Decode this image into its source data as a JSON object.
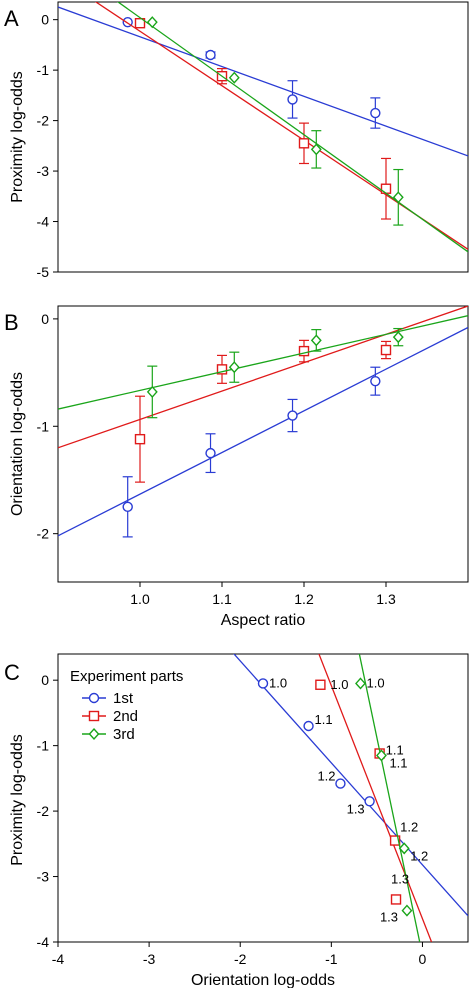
{
  "colors": {
    "s1": "#2a3cd4",
    "s2": "#e01a1a",
    "s3": "#1aa51a"
  },
  "chart_data": [
    {
      "panel": "A",
      "type": "scatter",
      "xlim": [
        0.9,
        1.4
      ],
      "ylim": [
        -5,
        0.35
      ],
      "xticks": [],
      "yticks": [
        "0",
        "-1",
        "-2",
        "-3",
        "-4",
        "-5"
      ],
      "ylabel": "Proximity log-odds",
      "xlabel": "",
      "series": [
        {
          "marker": "circle",
          "color": "#2a3cd4",
          "points": [
            [
              0.985,
              -0.05,
              0,
              0
            ],
            [
              1.086,
              -0.7,
              0.06,
              0.06
            ],
            [
              1.186,
              -1.58,
              0.37,
              0.37
            ],
            [
              1.287,
              -1.85,
              0.3,
              0.3
            ]
          ],
          "line": [
            [
              0.9,
              0.25
            ],
            [
              1.4,
              -2.7
            ]
          ]
        },
        {
          "marker": "square",
          "color": "#e01a1a",
          "points": [
            [
              1.0,
              -0.07,
              0,
              0
            ],
            [
              1.1,
              -1.12,
              0.15,
              0.15
            ],
            [
              1.2,
              -2.45,
              0.4,
              0.4
            ],
            [
              1.3,
              -3.35,
              0.6,
              0.6
            ]
          ],
          "line": [
            [
              0.9,
              0.85
            ],
            [
              1.4,
              -4.55
            ]
          ]
        },
        {
          "marker": "diamond",
          "color": "#1aa51a",
          "points": [
            [
              1.015,
              -0.05,
              0,
              0
            ],
            [
              1.115,
              -1.15,
              0,
              0
            ],
            [
              1.215,
              -2.57,
              0.37,
              0.37
            ],
            [
              1.315,
              -3.52,
              0.55,
              0.55
            ]
          ],
          "line": [
            [
              0.9,
              1.2
            ],
            [
              1.4,
              -4.6
            ]
          ]
        }
      ]
    },
    {
      "panel": "B",
      "type": "scatter",
      "xlim": [
        0.9,
        1.4
      ],
      "ylim": [
        -2.45,
        0.12
      ],
      "xticks": [
        "1.0",
        "1.1",
        "1.2",
        "1.3"
      ],
      "yticks": [
        "0",
        "-1",
        "-2"
      ],
      "ylabel": "Orientation log-odds",
      "xlabel": "Aspect ratio",
      "series": [
        {
          "marker": "circle",
          "color": "#2a3cd4",
          "points": [
            [
              0.985,
              -1.75,
              0.28,
              0.28
            ],
            [
              1.086,
              -1.25,
              0.18,
              0.18
            ],
            [
              1.186,
              -0.9,
              0.15,
              0.15
            ],
            [
              1.287,
              -0.58,
              0.13,
              0.13
            ]
          ],
          "line": [
            [
              0.9,
              -2.02
            ],
            [
              1.4,
              -0.08
            ]
          ]
        },
        {
          "marker": "square",
          "color": "#e01a1a",
          "points": [
            [
              1.0,
              -1.12,
              0.4,
              0.4
            ],
            [
              1.1,
              -0.47,
              0.13,
              0.13
            ],
            [
              1.2,
              -0.3,
              0.1,
              0.1
            ],
            [
              1.3,
              -0.29,
              0.08,
              0.08
            ]
          ],
          "line": [
            [
              0.9,
              -1.2
            ],
            [
              1.4,
              0.12
            ]
          ]
        },
        {
          "marker": "diamond",
          "color": "#1aa51a",
          "points": [
            [
              1.015,
              -0.68,
              0.24,
              0.24
            ],
            [
              1.115,
              -0.45,
              0.14,
              0.14
            ],
            [
              1.215,
              -0.2,
              0.1,
              0.1
            ],
            [
              1.315,
              -0.17,
              0.08,
              0.08
            ]
          ],
          "line": [
            [
              0.9,
              -0.84
            ],
            [
              1.4,
              0.03
            ]
          ]
        }
      ]
    },
    {
      "panel": "C",
      "type": "scatter",
      "xlim": [
        -4,
        0.5
      ],
      "ylim": [
        -4,
        0.4
      ],
      "xticks": [
        "-4",
        "-3",
        "-2",
        "-1",
        "0"
      ],
      "yticks": [
        "0",
        "-1",
        "-2",
        "-3",
        "-4"
      ],
      "ylabel": "Proximity log-odds",
      "xlabel": "Orientation log-odds",
      "legend": {
        "title": "Experiment parts",
        "entries": [
          "1st",
          "2nd",
          "3rd"
        ],
        "placement": "top-left"
      },
      "series": [
        {
          "name": "1st",
          "marker": "circle",
          "color": "#2a3cd4",
          "points": [
            [
              -1.75,
              -0.05
            ],
            [
              -1.25,
              -0.7
            ],
            [
              -0.9,
              -1.58
            ],
            [
              -0.58,
              -1.85
            ]
          ],
          "labels": [
            "1.0",
            "1.1",
            "1.2",
            "1.3"
          ],
          "line": [
            [
              -2.1,
              0.45
            ],
            [
              0.5,
              -3.6
            ]
          ]
        },
        {
          "name": "2nd",
          "marker": "square",
          "color": "#e01a1a",
          "points": [
            [
              -1.12,
              -0.07
            ],
            [
              -0.47,
              -1.12
            ],
            [
              -0.3,
              -2.45
            ],
            [
              -0.29,
              -3.35
            ]
          ],
          "labels": [
            "1.0",
            "1.1",
            "1.2",
            "1.3"
          ],
          "line": [
            [
              -1.15,
              0.45
            ],
            [
              0.1,
              -4.0
            ]
          ]
        },
        {
          "name": "3rd",
          "marker": "diamond",
          "color": "#1aa51a",
          "points": [
            [
              -0.68,
              -0.05
            ],
            [
              -0.45,
              -1.15
            ],
            [
              -0.2,
              -2.57
            ],
            [
              -0.17,
              -3.52
            ]
          ],
          "labels": [
            "1.0",
            "1.1",
            "1.2",
            "1.3"
          ],
          "line": [
            [
              -0.7,
              0.45
            ],
            [
              -0.03,
              -4.0
            ]
          ]
        }
      ]
    }
  ],
  "panels": {
    "a_letter": "A",
    "b_letter": "B",
    "c_letter": "C"
  }
}
